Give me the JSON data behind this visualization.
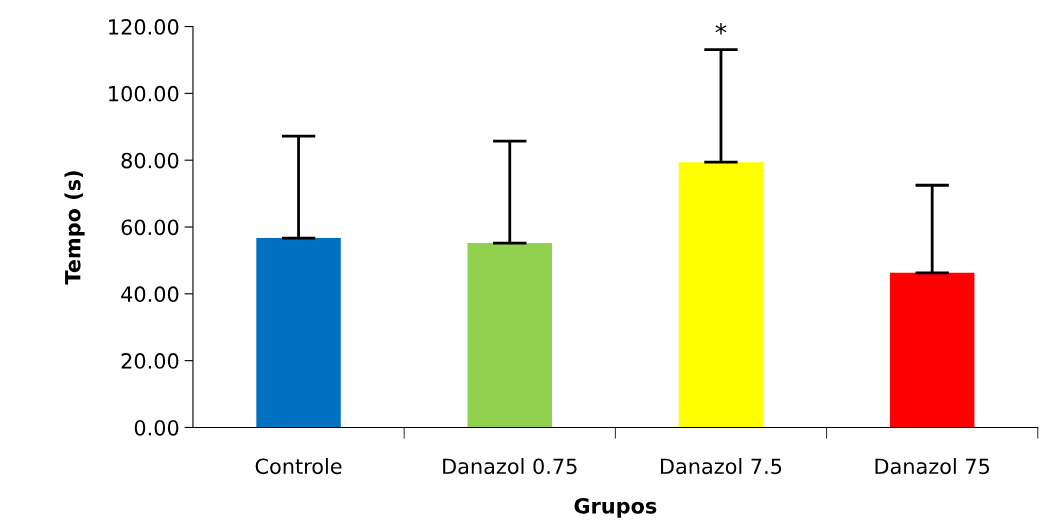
{
  "chart_data": {
    "type": "bar",
    "xlabel": "Grupos",
    "ylabel": "Tempo (s)",
    "categories": [
      "Controle",
      "Danazol 0.75",
      "Danazol 7.5",
      "Danazol 75"
    ],
    "values": [
      56.7,
      55.2,
      79.4,
      46.3
    ],
    "colors": [
      "#0070c0",
      "#92d050",
      "#ffff00",
      "#ff0000"
    ],
    "errors": [
      [
        56.7,
        87.2
      ],
      [
        55.2,
        85.7
      ],
      [
        79.4,
        113.1
      ],
      [
        46.3,
        72.5
      ]
    ],
    "ylim": [
      0,
      120
    ],
    "yticks": [
      {
        "value": 0,
        "label": "0.00"
      },
      {
        "value": 20,
        "label": "20.00"
      },
      {
        "value": 40,
        "label": "40.00"
      },
      {
        "value": 60,
        "label": "60.00"
      },
      {
        "value": 80,
        "label": "80.00"
      },
      {
        "value": 100,
        "label": "100.00"
      },
      {
        "value": 120,
        "label": "120.00"
      }
    ],
    "annotations": [
      {
        "text": "*",
        "x": "Danazol 7.5",
        "y": 113.1
      }
    ],
    "grid": false,
    "legend": false
  }
}
